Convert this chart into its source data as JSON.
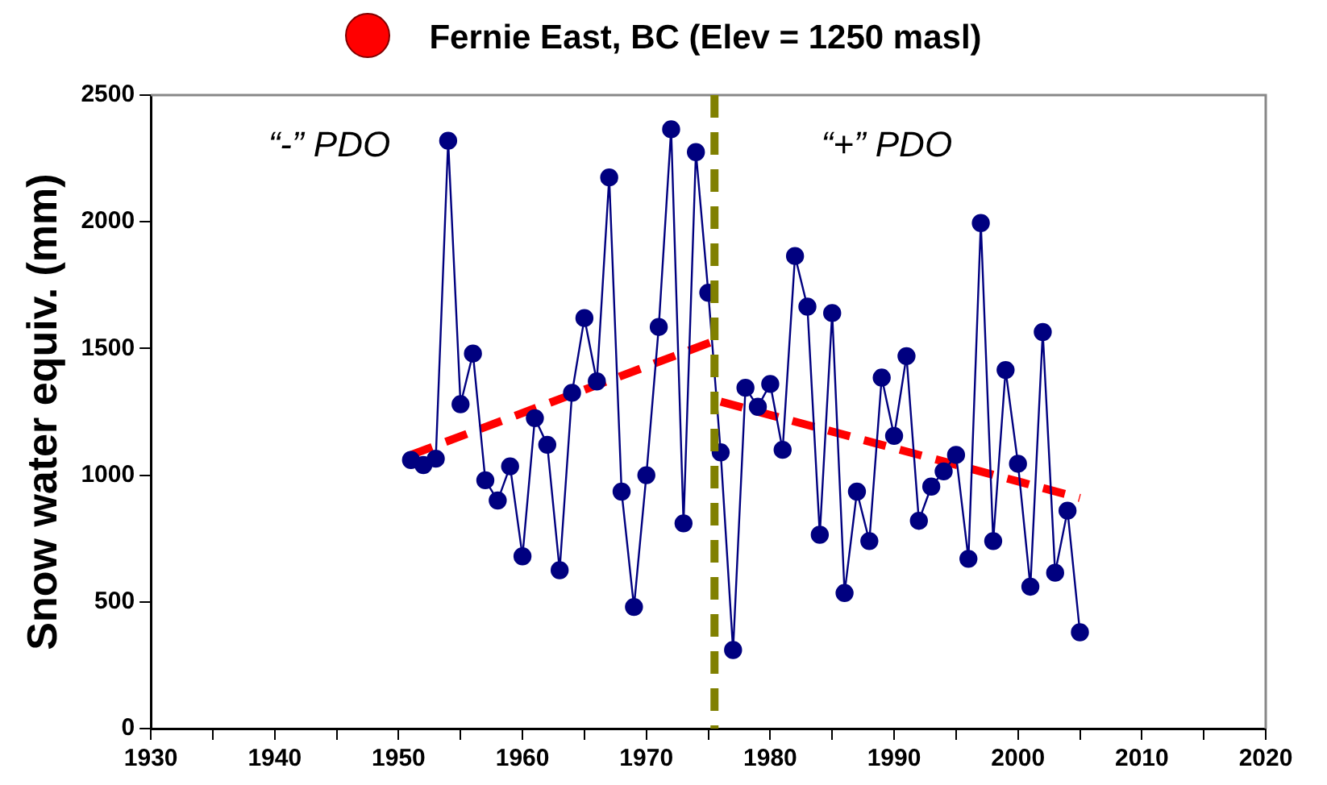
{
  "chart_data": {
    "type": "line",
    "title": "Fernie East, BC (Elev = 1250 masl)",
    "ylabel": "Snow water equiv. (mm)",
    "x": [
      1951,
      1952,
      1953,
      1954,
      1955,
      1956,
      1957,
      1958,
      1959,
      1960,
      1961,
      1962,
      1963,
      1964,
      1965,
      1966,
      1967,
      1968,
      1969,
      1970,
      1971,
      1972,
      1973,
      1974,
      1975,
      1976,
      1977,
      1978,
      1979,
      1980,
      1981,
      1982,
      1983,
      1984,
      1985,
      1986,
      1987,
      1988,
      1989,
      1990,
      1991,
      1992,
      1993,
      1994,
      1995,
      1996,
      1997,
      1998,
      1999,
      2000,
      2001,
      2002,
      2003,
      2004,
      2005
    ],
    "series": [
      {
        "color": "#000080",
        "marker": "circle",
        "values": [
          1060,
          1040,
          1065,
          2320,
          1280,
          1480,
          980,
          900,
          1035,
          680,
          1225,
          1120,
          625,
          1325,
          1620,
          1370,
          2175,
          935,
          480,
          1000,
          1585,
          2365,
          810,
          2275,
          1720,
          1090,
          310,
          1345,
          1270,
          1360,
          1100,
          1865,
          1665,
          765,
          1640,
          535,
          935,
          740,
          1385,
          1155,
          1470,
          820,
          955,
          1015,
          1080,
          670,
          1995,
          740,
          1415,
          1045,
          560,
          1565,
          615,
          860,
          380
        ]
      },
      {
        "color": "#ff0000",
        "line_style": "dashed",
        "marker": "none",
        "x": [
          1951,
          1975.5
        ],
        "values": [
          1080,
          1530
        ]
      },
      {
        "color": "#ff0000",
        "line_style": "dashed",
        "marker": "none",
        "x": [
          1976,
          2005
        ],
        "values": [
          1290,
          910
        ]
      }
    ],
    "ref_lines": [
      {
        "axis": "x",
        "value": 1975.5,
        "color": "#808000",
        "line_style": "dashed"
      }
    ],
    "annotations": [
      "“-” PDO",
      "“+” PDO"
    ],
    "xlim": [
      1930,
      2020
    ],
    "xticks": [
      1930,
      {
        "value": 1935,
        "label": null
      },
      1940,
      {
        "value": 1945,
        "label": null
      },
      1950,
      {
        "value": 1955,
        "label": null
      },
      1960,
      {
        "value": 1965,
        "label": null
      },
      1970,
      {
        "value": 1975,
        "label": null
      },
      1980,
      {
        "value": 1985,
        "label": null
      },
      1990,
      {
        "value": 1995,
        "label": null
      },
      2000,
      {
        "value": 2005,
        "label": null
      },
      2010,
      {
        "value": 2015,
        "label": null
      },
      2020
    ],
    "ylim": [
      0,
      2500
    ],
    "yticks": [
      0,
      500,
      1000,
      1500,
      2000,
      2500
    ],
    "grid": false,
    "legend": false
  }
}
